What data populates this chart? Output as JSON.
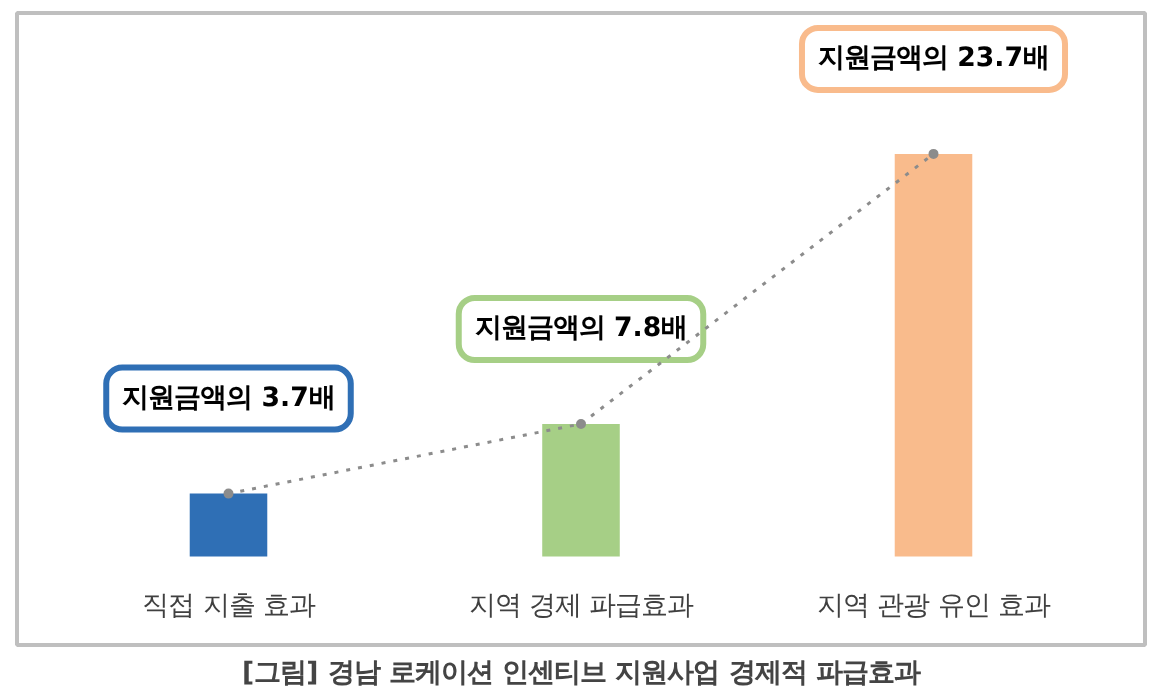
{
  "chart_data": {
    "type": "bar",
    "title": "[그림] 경남 로케이션 인센티브 지원사업 경제적 파급효과",
    "categories": [
      "직접 지출 효과",
      "지역 경제 파급효과",
      "지역 관광 유인 효과"
    ],
    "tick_labels": "x",
    "grid": false,
    "series": [
      {
        "values": [
          3.7,
          7.8,
          23.7
        ],
        "colors": [
          "#2f6fb5",
          "#a6cf86",
          "#f9bb8c"
        ],
        "value_labels": [
          "지원금액의 3.7배",
          "지원금액의 7.8배",
          "지원금액의 23.7배"
        ]
      },
      {
        "type": "line",
        "values": [
          3.7,
          7.8,
          23.7
        ],
        "color": "#8c8c8c",
        "line_style": "dotted",
        "marker": "circle"
      }
    ]
  }
}
